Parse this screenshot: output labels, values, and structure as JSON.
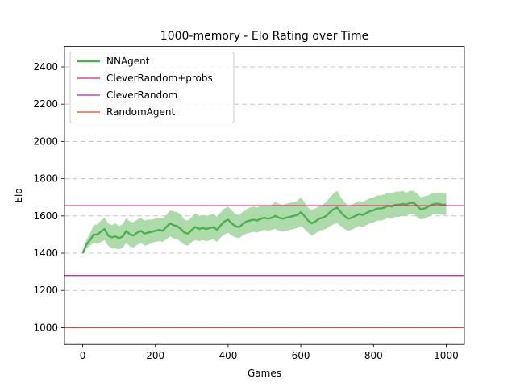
{
  "chart_data": {
    "type": "line",
    "title": "1000-memory - Elo Rating over Time",
    "xlabel": "Games",
    "ylabel": "Elo",
    "xlim": [
      -50,
      1050
    ],
    "ylim": [
      910,
      2510
    ],
    "x_ticks": [
      0,
      200,
      400,
      600,
      800,
      1000
    ],
    "y_ticks": [
      1000,
      1200,
      1400,
      1600,
      1800,
      2000,
      2200,
      2400
    ],
    "grid": "y-dashed",
    "legend_position": "top-left",
    "series": [
      {
        "name": "NNAgent",
        "kind": "line-with-band",
        "color": "#4caf50",
        "band_color": "#9fd59a",
        "x": [
          0,
          10,
          20,
          30,
          40,
          50,
          60,
          70,
          80,
          90,
          100,
          110,
          120,
          130,
          140,
          150,
          160,
          170,
          180,
          190,
          200,
          210,
          220,
          230,
          240,
          250,
          260,
          270,
          280,
          290,
          300,
          310,
          320,
          330,
          340,
          350,
          360,
          370,
          380,
          390,
          400,
          410,
          420,
          430,
          440,
          450,
          460,
          470,
          480,
          490,
          500,
          510,
          520,
          530,
          540,
          550,
          560,
          570,
          580,
          590,
          600,
          610,
          620,
          630,
          640,
          650,
          660,
          670,
          680,
          690,
          700,
          710,
          720,
          730,
          740,
          750,
          760,
          770,
          780,
          790,
          800,
          810,
          820,
          830,
          840,
          850,
          860,
          870,
          880,
          890,
          900,
          910,
          920,
          930,
          940,
          950,
          960,
          970,
          980,
          990,
          1000
        ],
        "y": [
          1400,
          1445,
          1470,
          1500,
          1500,
          1515,
          1530,
          1495,
          1485,
          1490,
          1480,
          1490,
          1520,
          1500,
          1495,
          1510,
          1520,
          1505,
          1510,
          1515,
          1520,
          1525,
          1520,
          1540,
          1560,
          1550,
          1545,
          1530,
          1510,
          1505,
          1525,
          1540,
          1530,
          1535,
          1530,
          1535,
          1540,
          1525,
          1550,
          1570,
          1580,
          1560,
          1545,
          1540,
          1555,
          1570,
          1575,
          1580,
          1575,
          1585,
          1590,
          1585,
          1590,
          1600,
          1590,
          1585,
          1590,
          1595,
          1600,
          1605,
          1620,
          1600,
          1575,
          1560,
          1570,
          1585,
          1590,
          1600,
          1620,
          1635,
          1645,
          1620,
          1600,
          1585,
          1590,
          1600,
          1610,
          1605,
          1615,
          1625,
          1630,
          1640,
          1640,
          1645,
          1655,
          1650,
          1660,
          1660,
          1665,
          1660,
          1670,
          1670,
          1655,
          1635,
          1640,
          1650,
          1660,
          1665,
          1665,
          1660,
          1660
        ],
        "y_lower": [
          1400,
          1425,
          1440,
          1455,
          1450,
          1460,
          1470,
          1440,
          1425,
          1425,
          1420,
          1430,
          1455,
          1435,
          1430,
          1445,
          1455,
          1440,
          1445,
          1455,
          1460,
          1465,
          1460,
          1475,
          1490,
          1480,
          1475,
          1460,
          1445,
          1440,
          1460,
          1470,
          1465,
          1470,
          1465,
          1470,
          1475,
          1460,
          1485,
          1500,
          1510,
          1495,
          1485,
          1480,
          1495,
          1505,
          1510,
          1515,
          1510,
          1520,
          1525,
          1520,
          1525,
          1530,
          1520,
          1515,
          1520,
          1525,
          1530,
          1535,
          1545,
          1530,
          1510,
          1495,
          1505,
          1520,
          1525,
          1530,
          1545,
          1555,
          1560,
          1545,
          1530,
          1520,
          1525,
          1535,
          1545,
          1540,
          1550,
          1560,
          1565,
          1575,
          1575,
          1580,
          1590,
          1585,
          1595,
          1595,
          1600,
          1600,
          1610,
          1610,
          1595,
          1580,
          1585,
          1595,
          1605,
          1610,
          1610,
          1605,
          1605
        ],
        "y_upper": [
          1400,
          1470,
          1505,
          1550,
          1555,
          1575,
          1590,
          1560,
          1550,
          1560,
          1545,
          1555,
          1590,
          1570,
          1565,
          1580,
          1590,
          1575,
          1580,
          1580,
          1585,
          1590,
          1585,
          1605,
          1630,
          1625,
          1620,
          1605,
          1580,
          1575,
          1595,
          1615,
          1600,
          1605,
          1600,
          1605,
          1610,
          1595,
          1620,
          1640,
          1650,
          1630,
          1610,
          1605,
          1620,
          1635,
          1645,
          1650,
          1645,
          1655,
          1660,
          1655,
          1660,
          1675,
          1665,
          1660,
          1665,
          1670,
          1675,
          1680,
          1700,
          1675,
          1645,
          1630,
          1640,
          1655,
          1660,
          1675,
          1700,
          1720,
          1735,
          1700,
          1675,
          1655,
          1660,
          1670,
          1680,
          1675,
          1685,
          1695,
          1700,
          1710,
          1710,
          1715,
          1725,
          1720,
          1730,
          1730,
          1735,
          1725,
          1735,
          1735,
          1720,
          1700,
          1705,
          1710,
          1720,
          1725,
          1725,
          1720,
          1720
        ]
      },
      {
        "name": "CleverRandom+probs",
        "kind": "hline",
        "y": 1655,
        "color": "#d6226e"
      },
      {
        "name": "CleverRandom",
        "kind": "hline",
        "y": 1280,
        "color": "#b21fb5"
      },
      {
        "name": "RandomAgent",
        "kind": "hline",
        "y": 1000,
        "color": "#e8462e"
      }
    ]
  }
}
